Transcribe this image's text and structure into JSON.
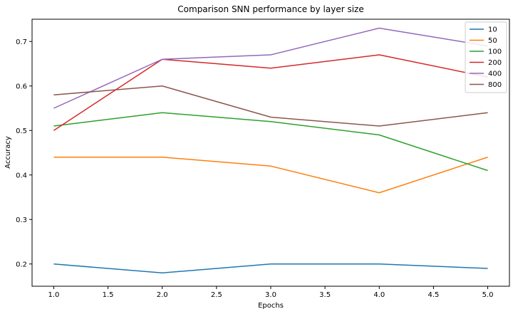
{
  "chart_data": {
    "type": "line",
    "title": "Comparison SNN performance by layer size",
    "xlabel": "Epochs",
    "ylabel": "Accuracy",
    "xlim": [
      0.8,
      5.2
    ],
    "ylim": [
      0.15,
      0.75
    ],
    "xticks": [
      1.0,
      1.5,
      2.0,
      2.5,
      3.0,
      3.5,
      4.0,
      4.5,
      5.0
    ],
    "xtick_labels": [
      "1.0",
      "1.5",
      "2.0",
      "2.5",
      "3.0",
      "3.5",
      "4.0",
      "4.5",
      "5.0"
    ],
    "yticks": [
      0.2,
      0.3,
      0.4,
      0.5,
      0.6,
      0.7
    ],
    "ytick_labels": [
      "0.2",
      "0.3",
      "0.4",
      "0.5",
      "0.6",
      "0.7"
    ],
    "grid": false,
    "legend_position": "top-right",
    "x": [
      1,
      2,
      3,
      4,
      5
    ],
    "series": [
      {
        "name": "10",
        "color": "#1f77b4",
        "values": [
          0.2,
          0.18,
          0.2,
          0.2,
          0.19
        ]
      },
      {
        "name": "50",
        "color": "#ff7f0e",
        "values": [
          0.44,
          0.44,
          0.42,
          0.36,
          0.44
        ]
      },
      {
        "name": "100",
        "color": "#2ca02c",
        "values": [
          0.51,
          0.54,
          0.52,
          0.49,
          0.41
        ]
      },
      {
        "name": "200",
        "color": "#d62728",
        "values": [
          0.5,
          0.66,
          0.64,
          0.67,
          0.62
        ]
      },
      {
        "name": "400",
        "color": "#9467bd",
        "values": [
          0.55,
          0.66,
          0.67,
          0.73,
          0.69
        ]
      },
      {
        "name": "800",
        "color": "#8c564b",
        "values": [
          0.58,
          0.6,
          0.53,
          0.51,
          0.54
        ]
      }
    ]
  }
}
